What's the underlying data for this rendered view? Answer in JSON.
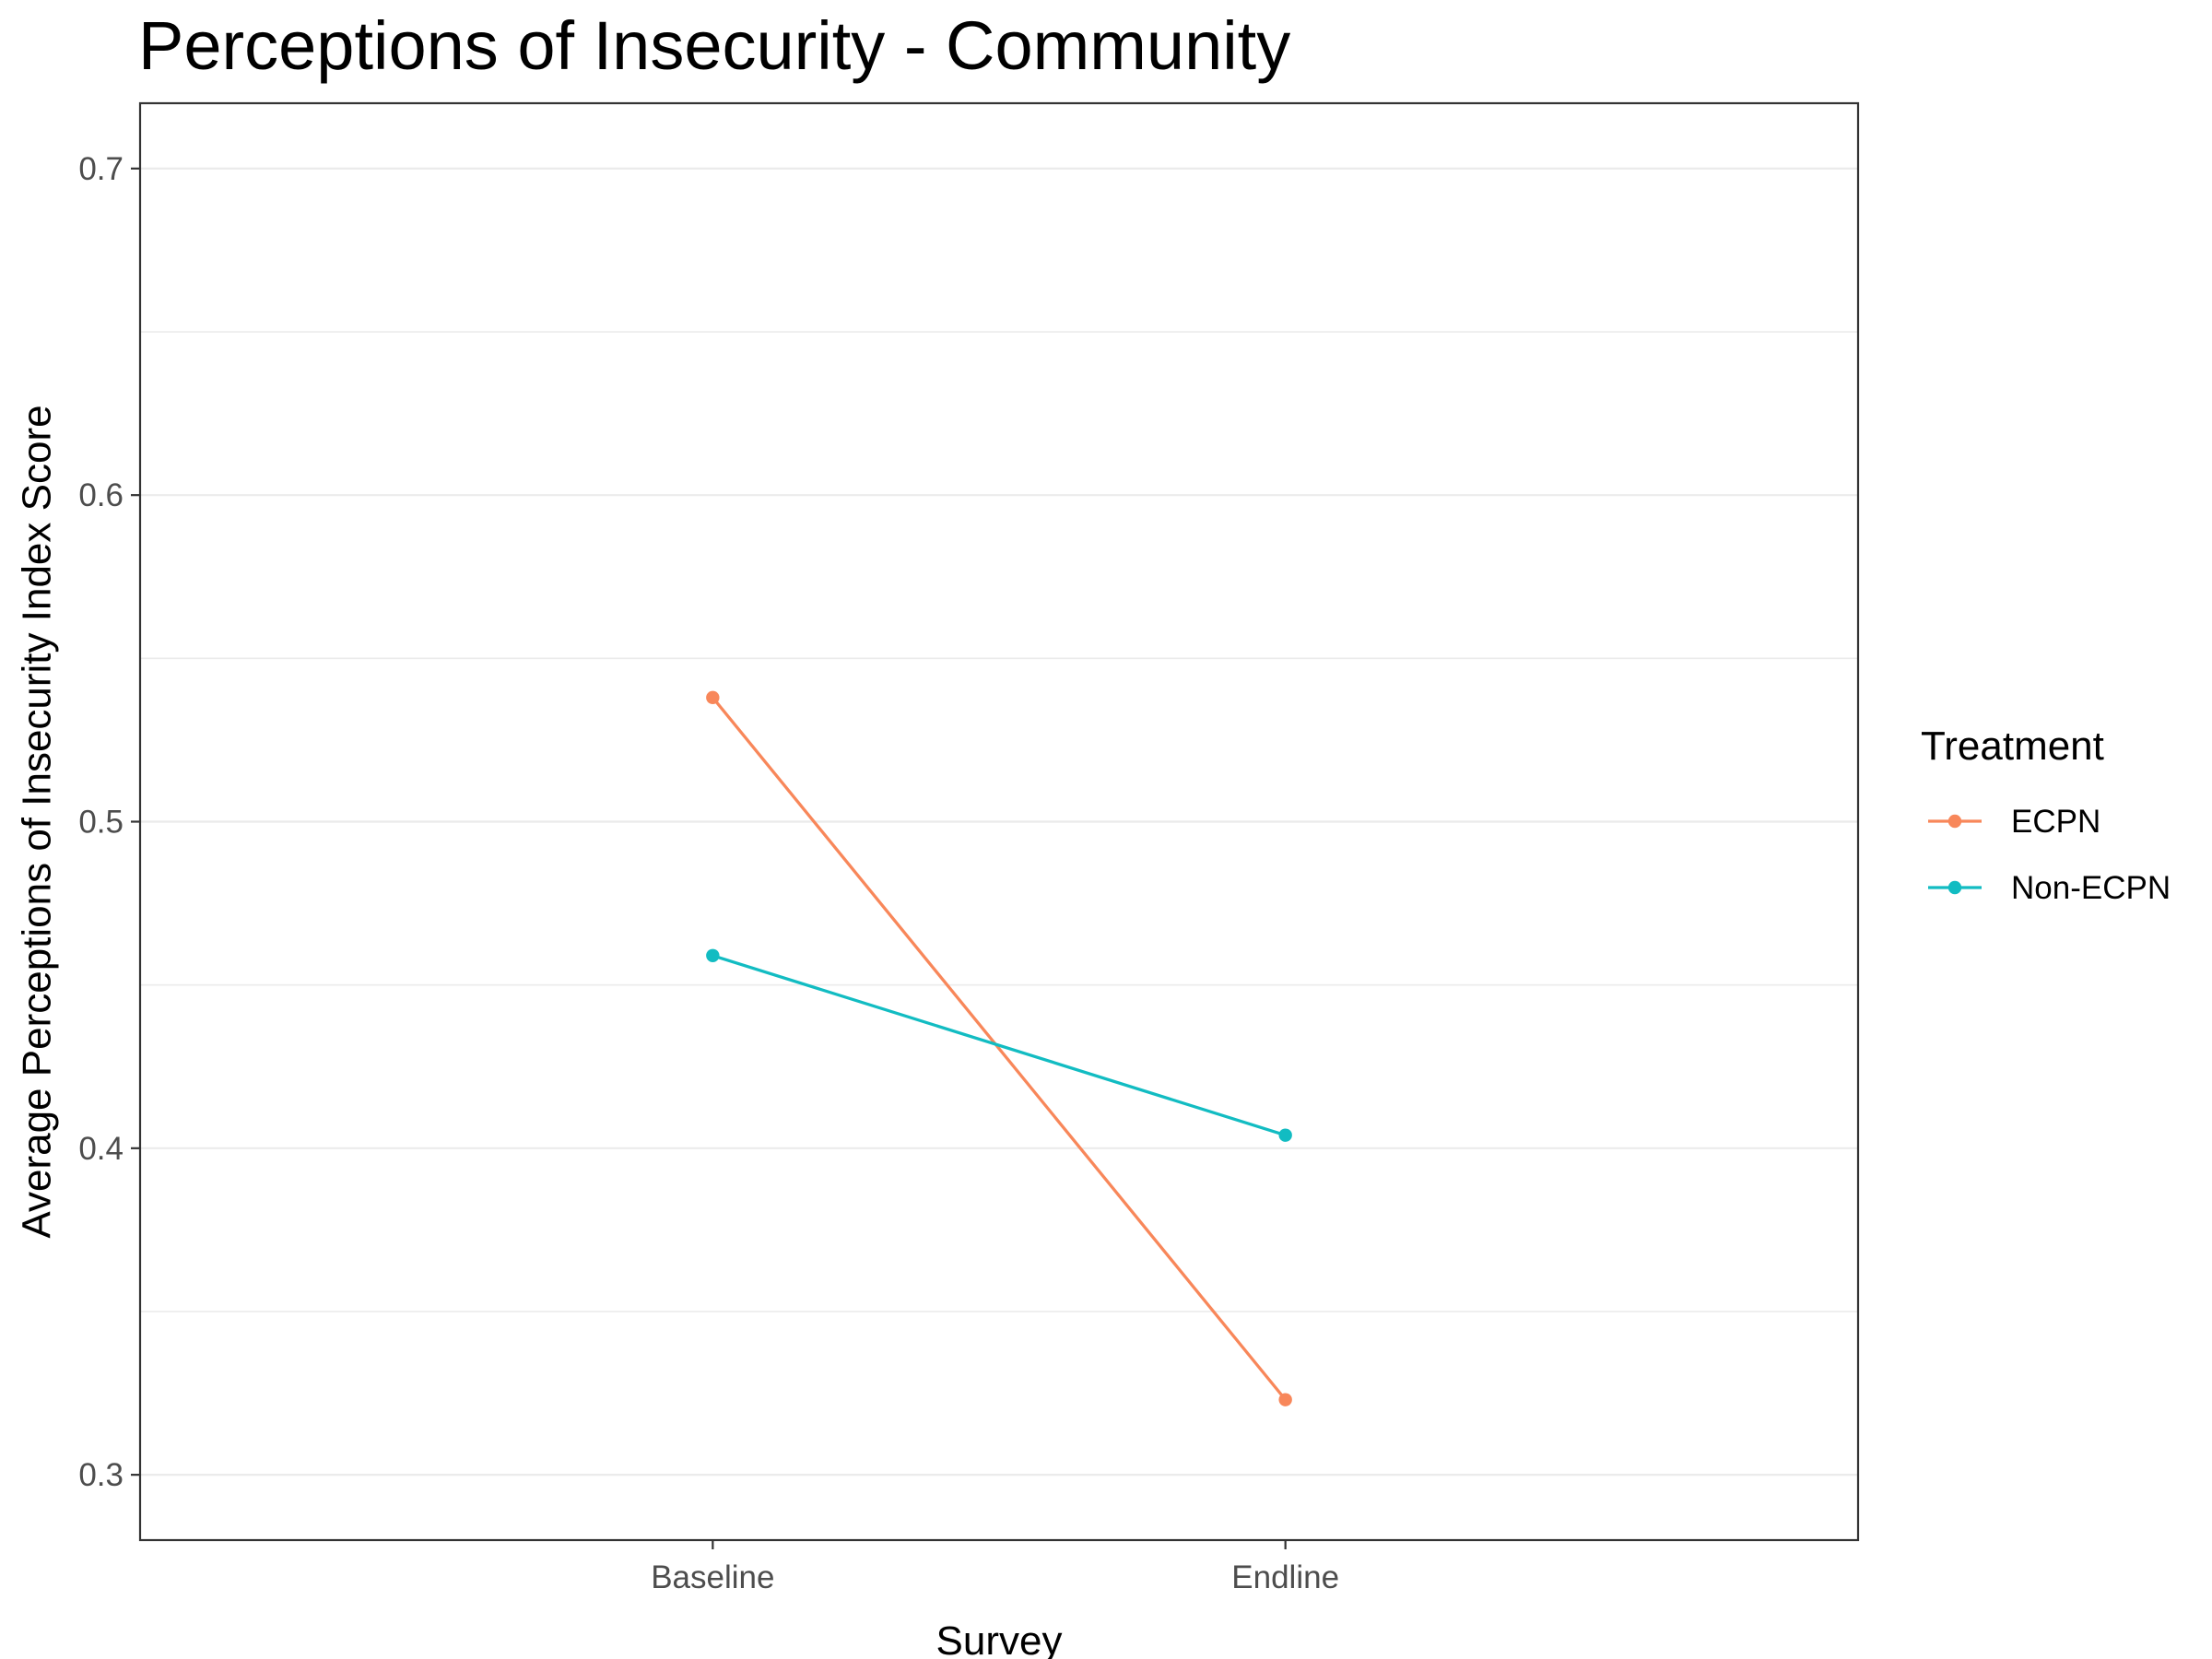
{
  "chart_data": {
    "type": "line",
    "title": "Perceptions of Insecurity - Community",
    "xlabel": "Survey",
    "ylabel": "Average Perceptions of Insecurity Index Score",
    "categories": [
      "Baseline",
      "Endline"
    ],
    "ylim": [
      0.28,
      0.72
    ],
    "yticks": [
      0.3,
      0.4,
      0.5,
      0.6,
      0.7
    ],
    "ytick_labels": [
      "0.3",
      "0.4",
      "0.5",
      "0.6",
      "0.7"
    ],
    "grid": "horizontal",
    "legend": {
      "title": "Treatment",
      "position": "right"
    },
    "series": [
      {
        "name": "ECPN",
        "color": "#f8875a",
        "values": [
          0.538,
          0.323
        ]
      },
      {
        "name": "Non-ECPN",
        "color": "#12bcc2",
        "values": [
          0.459,
          0.404
        ]
      }
    ]
  }
}
